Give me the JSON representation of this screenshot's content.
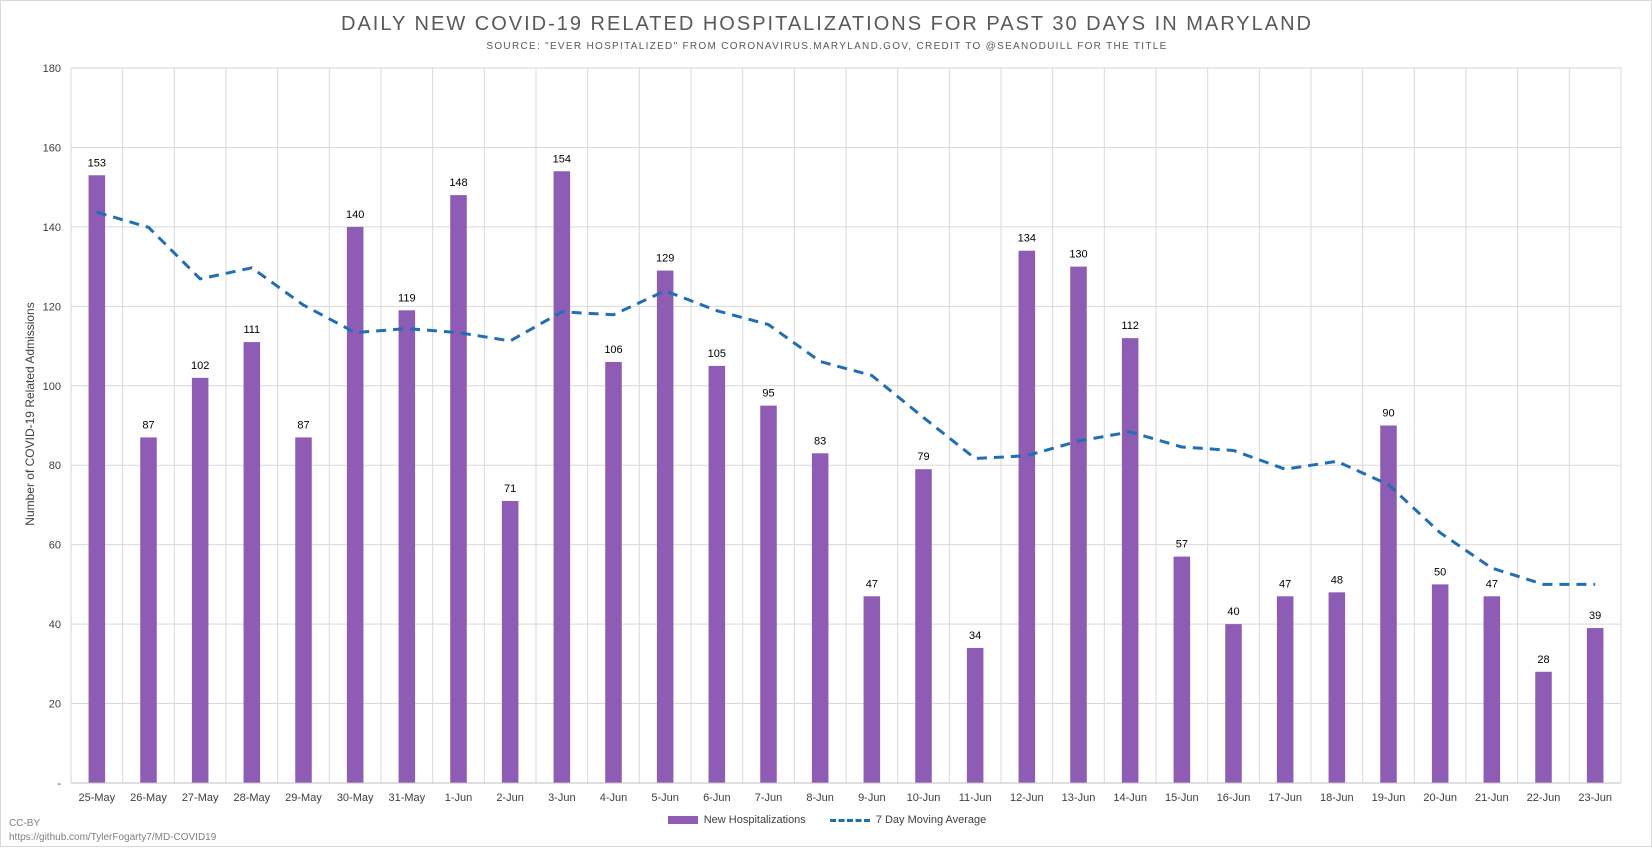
{
  "chart_data": {
    "type": "bar",
    "title": "DAILY NEW COVID-19 RELATED HOSPITALIZATIONS FOR PAST 30 DAYS IN MARYLAND",
    "subtitle": "SOURCE: \"EVER HOSPITALIZED\" FROM CORONAVIRUS.MARYLAND.GOV, CREDIT TO @SEANODUILL FOR THE TITLE",
    "xlabel": "",
    "ylabel": "Number of COVID-19 Related Admissions",
    "ylim": [
      0,
      180
    ],
    "yticks": [
      0,
      20,
      40,
      60,
      80,
      100,
      120,
      140,
      160,
      180
    ],
    "ytick_labels": [
      "-",
      "20",
      "40",
      "60",
      "80",
      "100",
      "120",
      "140",
      "160",
      "180"
    ],
    "grid": true,
    "legend_position": "bottom",
    "categories": [
      "25-May",
      "26-May",
      "27-May",
      "28-May",
      "29-May",
      "30-May",
      "31-May",
      "1-Jun",
      "2-Jun",
      "3-Jun",
      "4-Jun",
      "5-Jun",
      "6-Jun",
      "7-Jun",
      "8-Jun",
      "9-Jun",
      "10-Jun",
      "11-Jun",
      "12-Jun",
      "13-Jun",
      "14-Jun",
      "15-Jun",
      "16-Jun",
      "17-Jun",
      "18-Jun",
      "19-Jun",
      "20-Jun",
      "21-Jun",
      "22-Jun",
      "23-Jun"
    ],
    "series": [
      {
        "name": "New Hospitalizations",
        "type": "bar",
        "color": "#8e5bb5",
        "values": [
          153,
          87,
          102,
          111,
          87,
          140,
          119,
          148,
          71,
          154,
          106,
          129,
          105,
          95,
          83,
          47,
          79,
          34,
          134,
          130,
          112,
          57,
          40,
          47,
          48,
          90,
          50,
          47,
          28,
          39
        ]
      },
      {
        "name": "7 Day Moving Average",
        "type": "line",
        "style": "dashed",
        "color": "#1f6fb8",
        "values": [
          143.7,
          139.9,
          126.9,
          129.7,
          120.3,
          113.4,
          114.4,
          113.4,
          111.3,
          118.6,
          117.9,
          123.9,
          118.9,
          115.4,
          106.1,
          102.6,
          92.0,
          81.7,
          82.4,
          86.1,
          88.4,
          84.6,
          83.7,
          79.0,
          81.0,
          75.1,
          63.0,
          54.1,
          50.0,
          50.0
        ]
      }
    ]
  },
  "footer": {
    "license": "CC-BY",
    "url": "https://github.com/TylerFogarty7/MD-COVID19"
  }
}
